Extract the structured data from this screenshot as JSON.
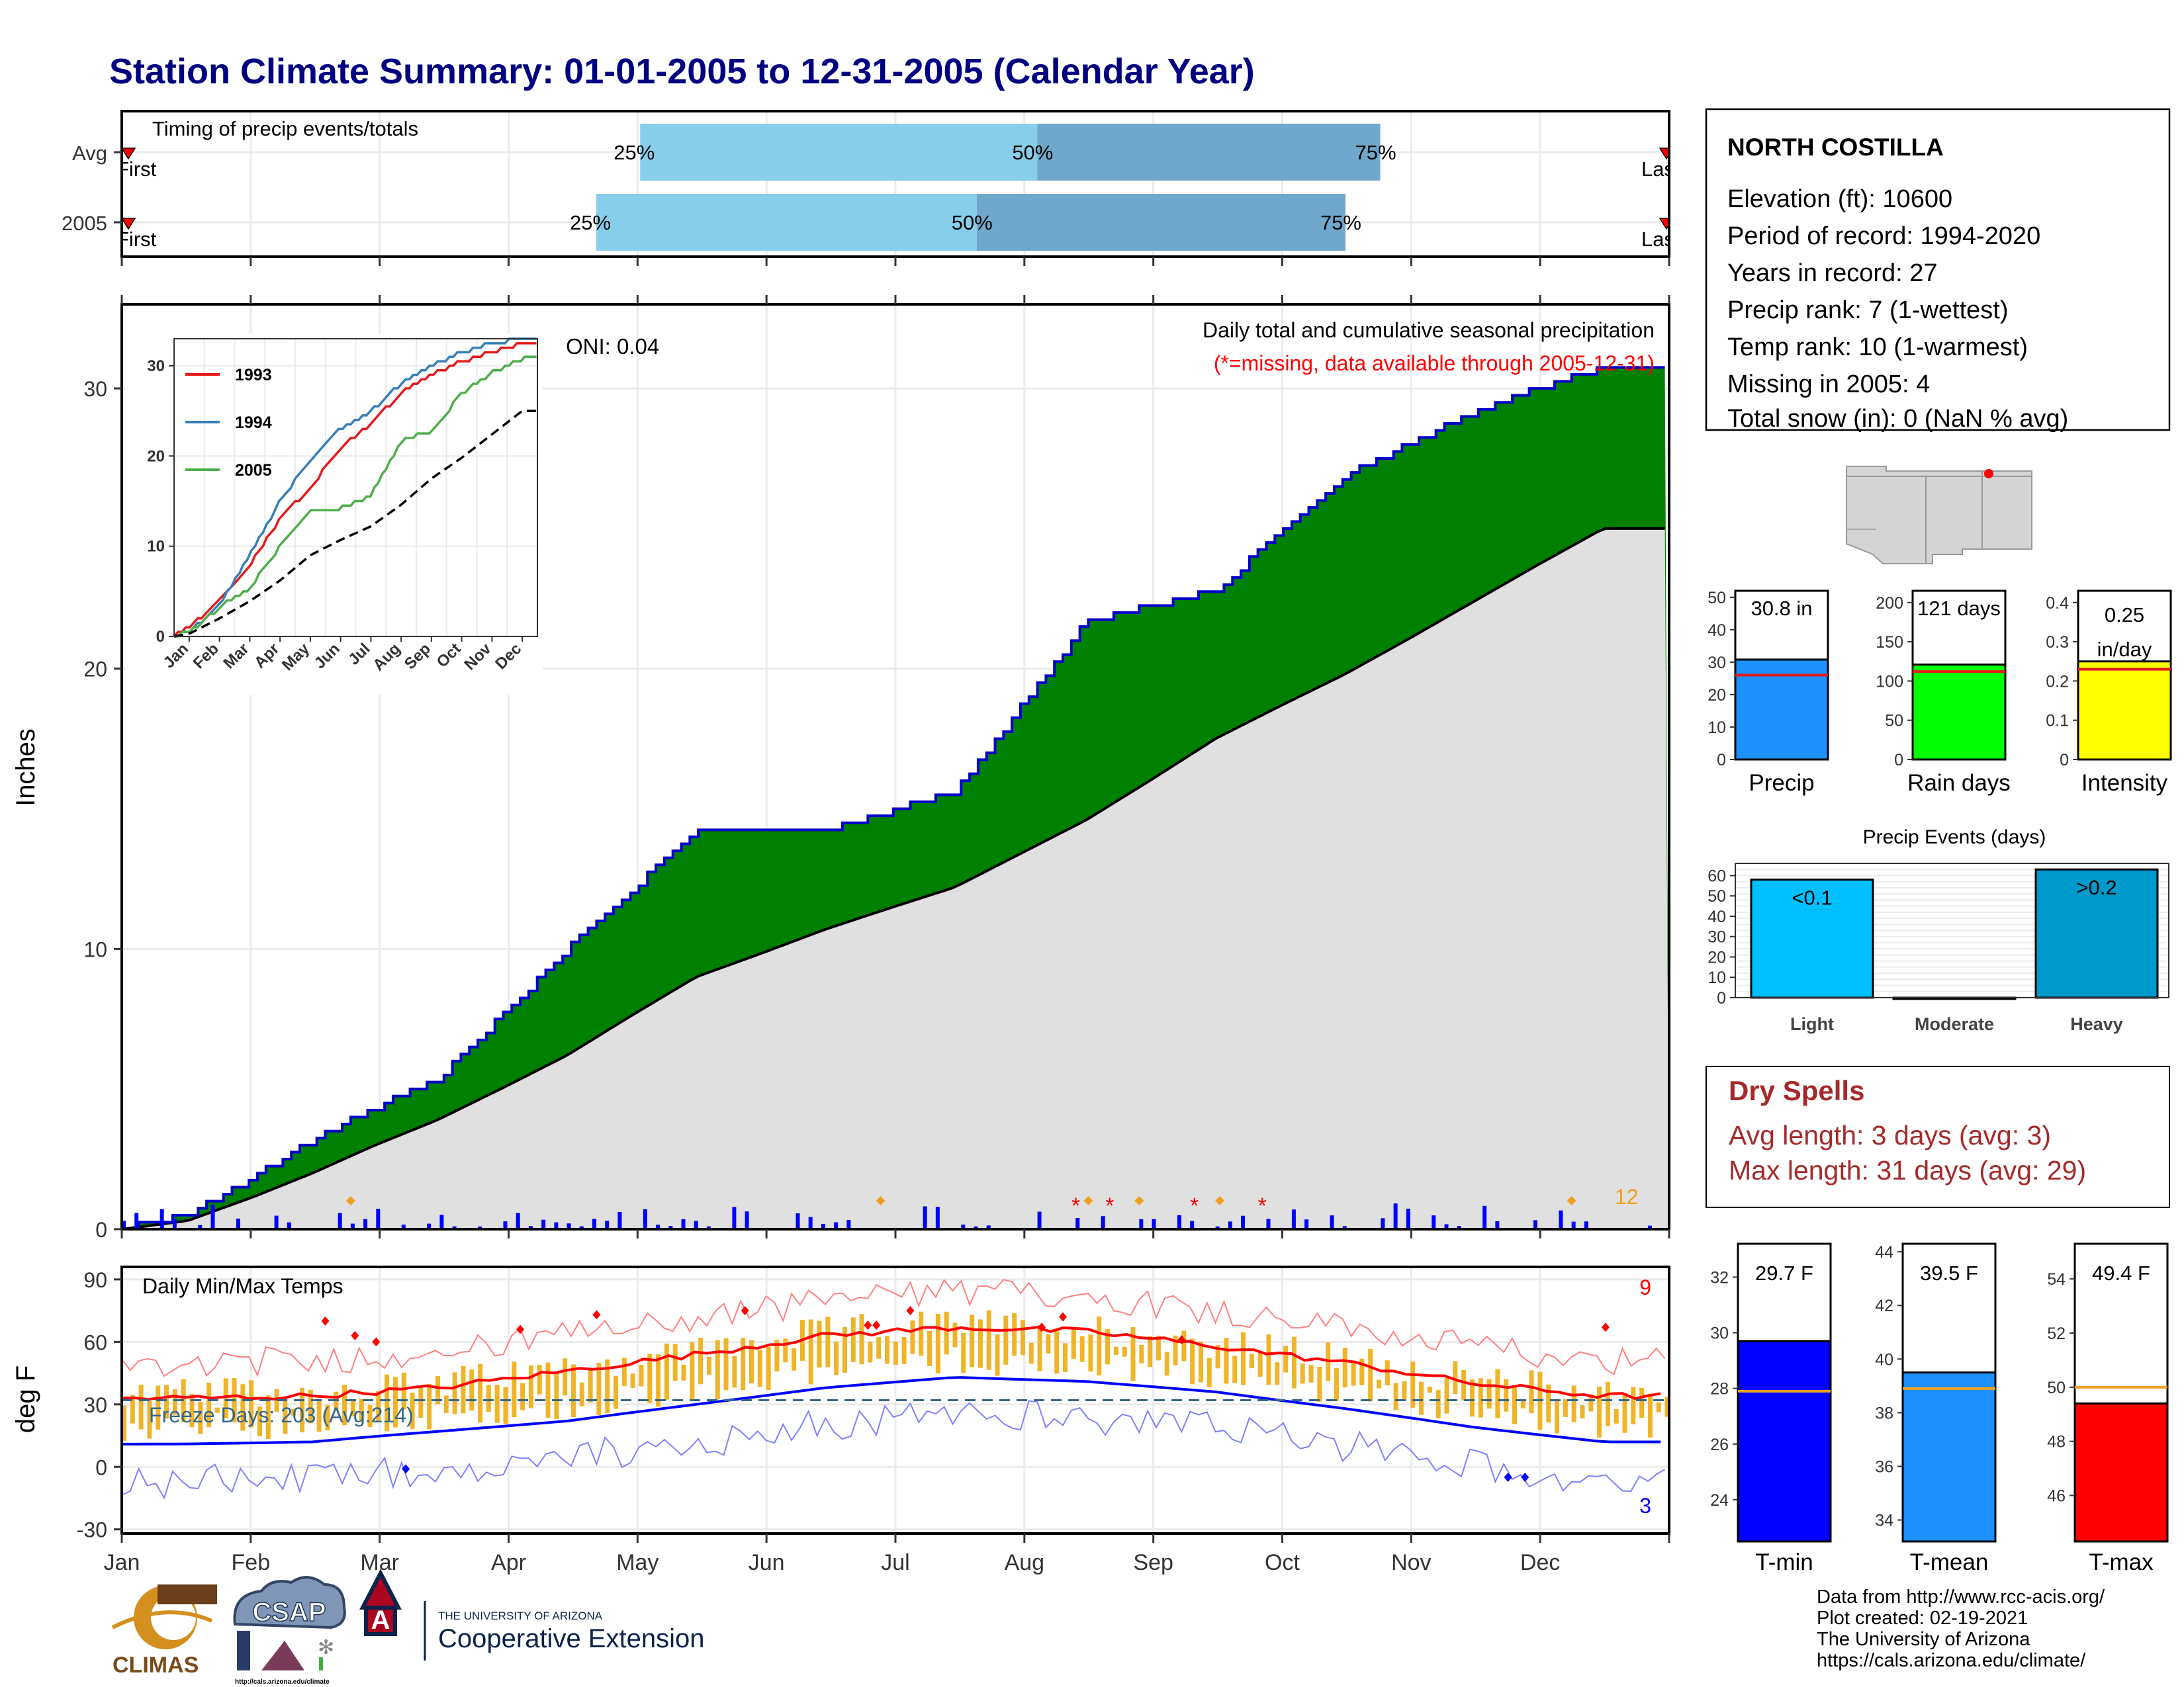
{
  "title": "Station Climate Summary: 01-01-2005 to 12-31-2005 (Calendar Year)",
  "timing_panel": {
    "label": "Timing of precip events/totals",
    "rows": [
      {
        "label": "Avg",
        "p25_month": 4.02,
        "p50_month": 7.1,
        "p75_month": 9.76,
        "first_label": "First",
        "last_label": "Last"
      },
      {
        "label": "2005",
        "p25_month": 3.68,
        "p50_month": 6.63,
        "p75_month": 9.49,
        "first_label": "First",
        "last_label": "Last"
      }
    ],
    "p25_label": "25%",
    "p50_label": "50%",
    "p75_label": "75%",
    "colors": {
      "light": "#87ceeb",
      "dark": "#6fa8cc",
      "marker": "#ff0000"
    }
  },
  "precip_panel": {
    "ylabel": "Inches",
    "ylim": [
      0,
      33
    ],
    "yticks": [
      0,
      10,
      20,
      30
    ],
    "title_line1": "Daily total and cumulative seasonal precipitation",
    "title_line2": "(*=missing, data available through 2005-12-31)",
    "oni": "ONI: 0.04",
    "corner_count": "12",
    "colors": {
      "area_above": "#008000",
      "normal_fill": "#e0e0e0",
      "line": "#0000cc",
      "daily_bar": "#0000ff"
    }
  },
  "inset": {
    "yticks": [
      0,
      10,
      20,
      30
    ],
    "series": [
      {
        "name": "1993",
        "color": "#e41a1c"
      },
      {
        "name": "1994",
        "color": "#377eb8"
      },
      {
        "name": "2005",
        "color": "#4daf4a"
      }
    ]
  },
  "months": [
    "Jan",
    "Feb",
    "Mar",
    "Apr",
    "May",
    "Jun",
    "Jul",
    "Aug",
    "Sep",
    "Oct",
    "Nov",
    "Dec"
  ],
  "temp_panel": {
    "ylabel": "deg F",
    "label": "Daily Min/Max Temps",
    "yticks": [
      -30,
      0,
      30,
      60,
      90
    ],
    "ylim": [
      -32,
      96
    ],
    "freeze_label": "Freeze Days: 203 (Avg:214)",
    "record_high_count": "9",
    "record_low_count": "3",
    "freeze_line": 32,
    "colors": {
      "bar": "#f0b428",
      "avg_max": "#ff0000",
      "avg_min": "#0000ff",
      "rec_max": "#ff8080",
      "rec_min": "#8080ff"
    }
  },
  "station": {
    "name": "NORTH COSTILLA",
    "lines": [
      "Elevation (ft): 10600",
      "Period of record: 1994-2020",
      "Years in record: 27",
      "Precip rank: 7 (1-wettest)",
      "Temp rank: 10 (1-warmest)",
      "Missing in 2005: 4",
      "Total snow (in): 0 (NaN % avg)"
    ]
  },
  "summary_bars": [
    {
      "label": "Precip",
      "value_text": "30.8 in",
      "value": 30.8,
      "avg": 26,
      "yticks": [
        0,
        10,
        20,
        30,
        40,
        50
      ],
      "ymax": 52,
      "color": "#1e90ff"
    },
    {
      "label": "Rain days",
      "value_text": "121 days",
      "value": 121,
      "avg": 112,
      "yticks": [
        0,
        50,
        100,
        150,
        200
      ],
      "ymax": 215,
      "color": "#00ff00"
    },
    {
      "label": "Intensity",
      "value_text": "0.25 in/day",
      "value": 0.25,
      "avg": 0.23,
      "yticks": [
        0.0,
        0.1,
        0.2,
        0.3,
        0.4
      ],
      "ymax": 0.43,
      "color": "#ffff00"
    }
  ],
  "precip_events": {
    "title": "Precip Events (days)",
    "yticks": [
      0,
      10,
      20,
      30,
      40,
      50,
      60
    ],
    "bars": [
      {
        "category": "Light",
        "value": 58,
        "label": "<0.1",
        "color": "#00bfff"
      },
      {
        "category": "Moderate",
        "value": 0,
        "label": "",
        "color": "#1e90ff"
      },
      {
        "category": "Heavy",
        "value": 63,
        "label": ">0.2",
        "color": "#0099cc"
      }
    ]
  },
  "dry_spells": {
    "title": "Dry Spells",
    "avg_length": "Avg length: 3 days (avg: 3)",
    "max_length": "Max length: 31 days (avg: 29)",
    "color": "#a52a2a"
  },
  "temp_bars": [
    {
      "label": "T-min",
      "value_text": "29.7 F",
      "value": 29.7,
      "avg": 27.9,
      "yticks": [
        24,
        26,
        28,
        30,
        32
      ],
      "ylim": [
        22.5,
        33.2
      ],
      "color": "#0000ff"
    },
    {
      "label": "T-mean",
      "value_text": "39.5 F",
      "value": 39.5,
      "avg": 38.9,
      "yticks": [
        34,
        36,
        38,
        40,
        42,
        44
      ],
      "ylim": [
        33.2,
        44.3
      ],
      "color": "#1e90ff"
    },
    {
      "label": "T-max",
      "value_text": "49.4 F",
      "value": 49.4,
      "avg": 50.0,
      "yticks": [
        46,
        48,
        50,
        52,
        54
      ],
      "ylim": [
        44.3,
        55.3
      ],
      "color": "#ff0000"
    }
  ],
  "footer": {
    "data_lines": [
      "Data from http://www.rcc-acis.org/",
      "Plot created: 02-19-2021",
      "The University of Arizona",
      "https://cals.arizona.edu/climate/"
    ],
    "climas": "CLIMAS",
    "csap": "CSAP",
    "csap_url": "http://cals.arizona.edu/climate",
    "ua_top": "THE UNIVERSITY OF ARIZONA",
    "ua_bottom": "Cooperative Extension"
  },
  "chart_data": [
    {
      "type": "area",
      "title": "Daily total and cumulative seasonal precipitation",
      "ylabel": "Inches",
      "ylim": [
        0,
        33
      ],
      "x": [
        "Jan",
        "Feb",
        "Mar",
        "Apr",
        "May",
        "Jun",
        "Jul",
        "Aug",
        "Sep",
        "Oct",
        "Nov",
        "Dec"
      ],
      "series": [
        {
          "values": [
            0.5,
            3.2,
            5.4,
            10.0,
            14.2,
            14.2,
            15.6,
            21.7,
            22.8,
            26.9,
            29.2,
            30.8
          ]
        },
        {
          "values": [
            0.3,
            2.0,
            3.9,
            6.2,
            9.0,
            10.7,
            12.2,
            14.6,
            17.5,
            19.8,
            22.4,
            25.0
          ]
        }
      ]
    },
    {
      "type": "line",
      "ylim": [
        0,
        33
      ],
      "x": [
        "Jan",
        "Feb",
        "Mar",
        "Apr",
        "May",
        "Jun",
        "Jul",
        "Aug",
        "Sep",
        "Oct",
        "Nov",
        "Dec"
      ],
      "series": [
        {
          "name": "1993",
          "values": [
            1,
            4,
            8,
            13,
            16.5,
            21,
            23.5,
            27,
            29,
            30.5,
            31.5,
            32.5
          ]
        },
        {
          "name": "1994",
          "values": [
            0.5,
            3.5,
            9,
            15,
            19.5,
            23,
            25,
            28,
            30,
            31.5,
            32.5,
            33
          ]
        },
        {
          "name": "2005",
          "values": [
            0.5,
            3.2,
            5.4,
            10.0,
            14.2,
            14.2,
            15.6,
            21.7,
            22.8,
            26.9,
            29.2,
            30.8
          ]
        },
        {
          "values": [
            0.3,
            2.0,
            3.9,
            6.2,
            9.0,
            10.7,
            12.2,
            14.6,
            17.5,
            19.8,
            22.4,
            25.0
          ]
        }
      ]
    },
    {
      "type": "bar",
      "title": "Daily Min/Max Temps",
      "ylabel": "deg F",
      "ylim": [
        -32,
        96
      ],
      "x": [
        "Jan",
        "Feb",
        "Mar",
        "Apr",
        "May",
        "Jun",
        "Jul",
        "Aug",
        "Sep",
        "Oct",
        "Nov",
        "Dec"
      ],
      "series": [
        {
          "values": [
            33,
            34,
            38,
            46,
            54,
            63,
            67,
            65,
            58,
            50,
            40,
            34
          ]
        },
        {
          "values": [
            11,
            12,
            17,
            22,
            30,
            38,
            43,
            41,
            36,
            28,
            19,
            12
          ]
        }
      ]
    },
    {
      "type": "bar",
      "categories": [
        "Precip",
        "Rain days",
        "Intensity"
      ],
      "values": [
        30.8,
        121,
        0.25
      ]
    },
    {
      "type": "bar",
      "title": "Precip Events (days)",
      "categories": [
        "Light",
        "Moderate",
        "Heavy"
      ],
      "values": [
        58,
        0,
        63
      ]
    },
    {
      "type": "bar",
      "categories": [
        "T-min",
        "T-mean",
        "T-max"
      ],
      "values": [
        29.7,
        39.5,
        49.4
      ]
    }
  ]
}
